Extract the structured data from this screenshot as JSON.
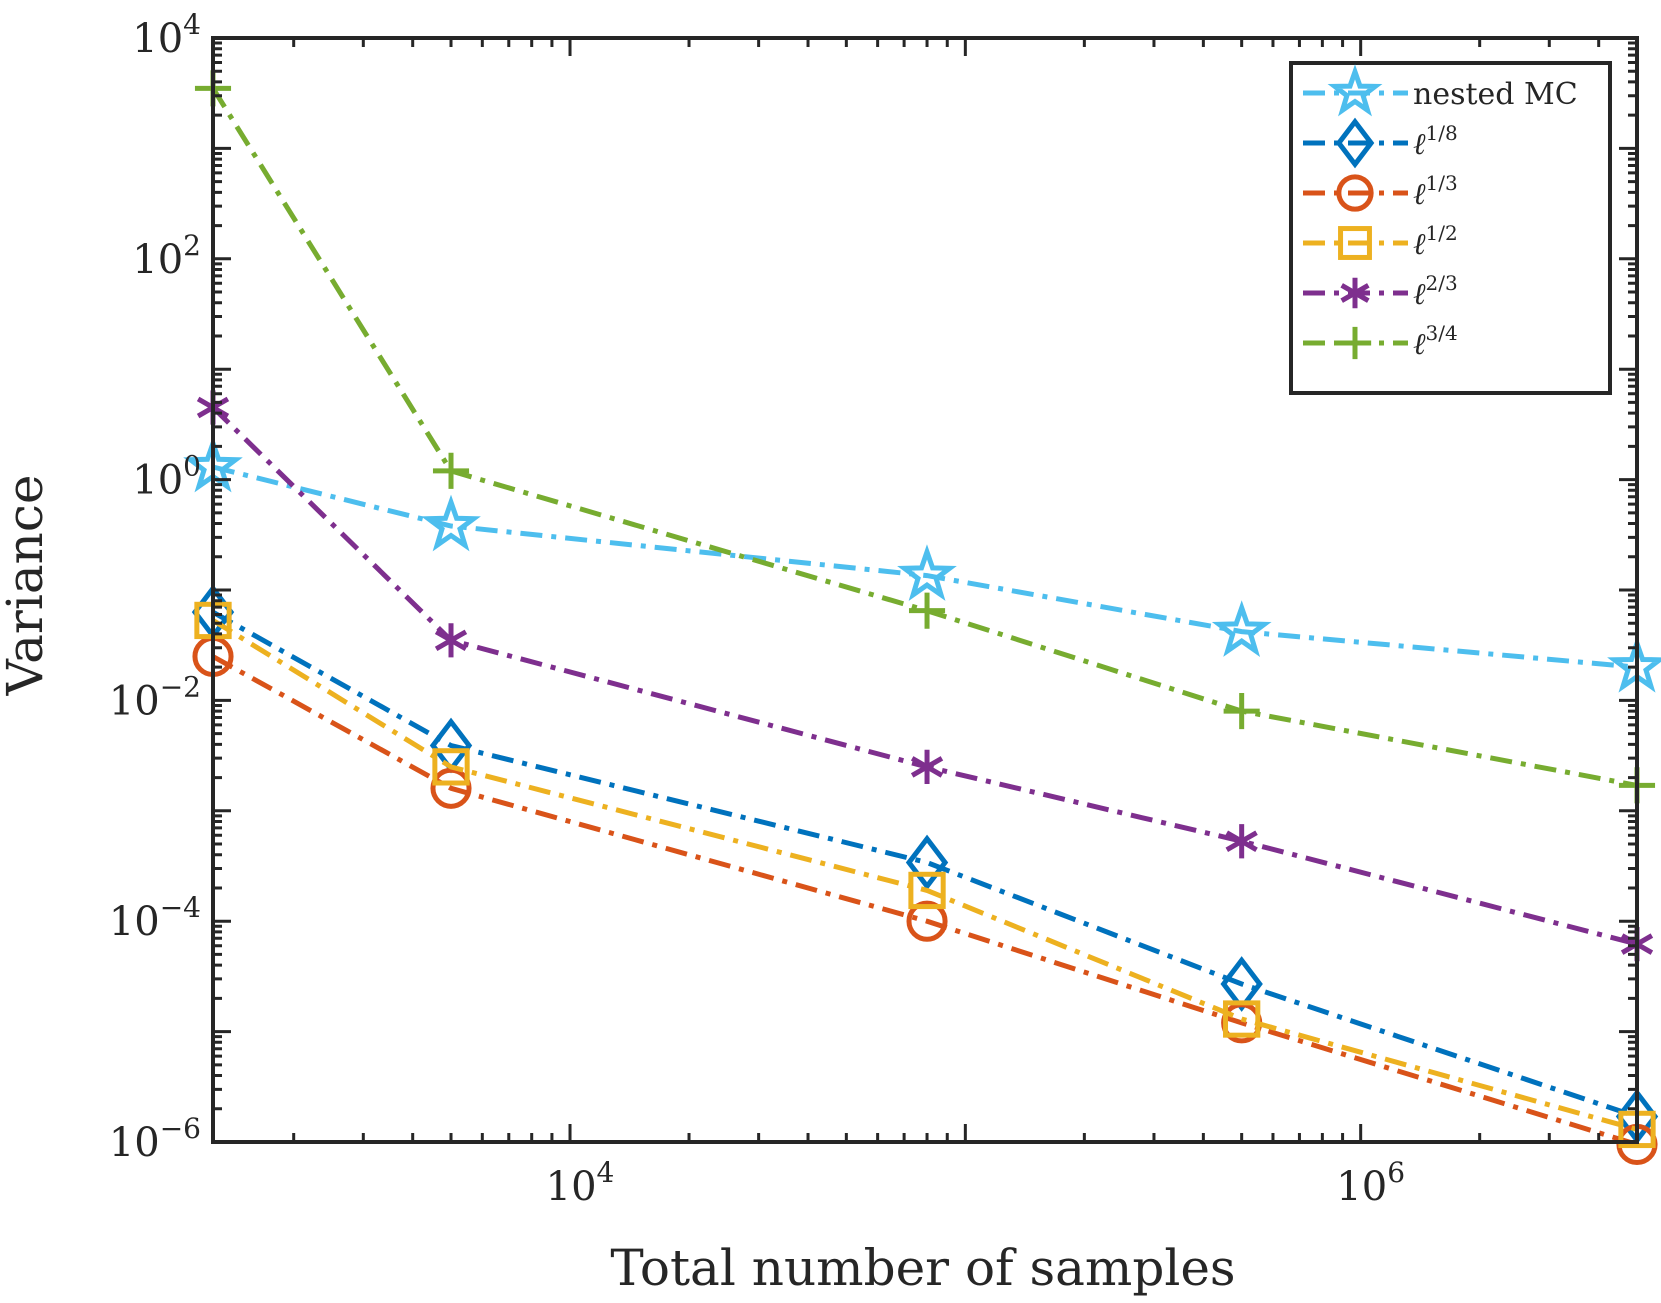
{
  "chart_data": {
    "type": "line",
    "title": "",
    "xlabel": "Total number of samples",
    "ylabel": "Variance",
    "xscale": "log",
    "yscale": "log",
    "xlim": [
      1250,
      5000000
    ],
    "ylim": [
      1e-06,
      10000
    ],
    "xticks": [
      {
        "base": "10",
        "exp": "4",
        "value": 10000
      },
      {
        "base": "10",
        "exp": "6",
        "value": 1000000
      }
    ],
    "yticks": [
      {
        "base": "10",
        "exp": "4",
        "value": 10000
      },
      {
        "base": "10",
        "exp": "2",
        "value": 100
      },
      {
        "base": "10",
        "exp": "0",
        "value": 1
      },
      {
        "base": "10",
        "exp": "−2",
        "value": 0.01
      },
      {
        "base": "10",
        "exp": "−4",
        "value": 0.0001
      },
      {
        "base": "10",
        "exp": "−6",
        "value": 1e-06
      }
    ],
    "grid": false,
    "legend_position": "top-right",
    "x": [
      1250,
      5000,
      80000,
      500000,
      5000000
    ],
    "series": [
      {
        "name": "nested MC",
        "marker": "star",
        "color": "#4DBEEE",
        "values": [
          1.3,
          0.38,
          0.135,
          0.042,
          0.02
        ]
      },
      {
        "name": "ℓ",
        "sup": "1/8",
        "marker": "diamond",
        "color": "#0072BD",
        "values": [
          0.063,
          0.0039,
          0.00034,
          2.7e-05,
          1.7e-06
        ]
      },
      {
        "name": "ℓ",
        "sup": "1/3",
        "marker": "circle",
        "color": "#D95319",
        "values": [
          0.025,
          0.0016,
          0.0001,
          1.2e-05,
          9.5e-07
        ]
      },
      {
        "name": "ℓ",
        "sup": "1/2",
        "marker": "square",
        "color": "#EDB120",
        "values": [
          0.053,
          0.0025,
          0.00019,
          1.3e-05,
          1.3e-06
        ]
      },
      {
        "name": "ℓ",
        "sup": "2/3",
        "marker": "asterisk",
        "color": "#7E2F8E",
        "values": [
          4.5,
          0.035,
          0.0025,
          0.00053,
          6.2e-05
        ]
      },
      {
        "name": "ℓ",
        "sup": "3/4",
        "marker": "plus",
        "color": "#77AC30",
        "values": [
          3500,
          1.2,
          0.065,
          0.008,
          0.0017
        ]
      }
    ]
  }
}
